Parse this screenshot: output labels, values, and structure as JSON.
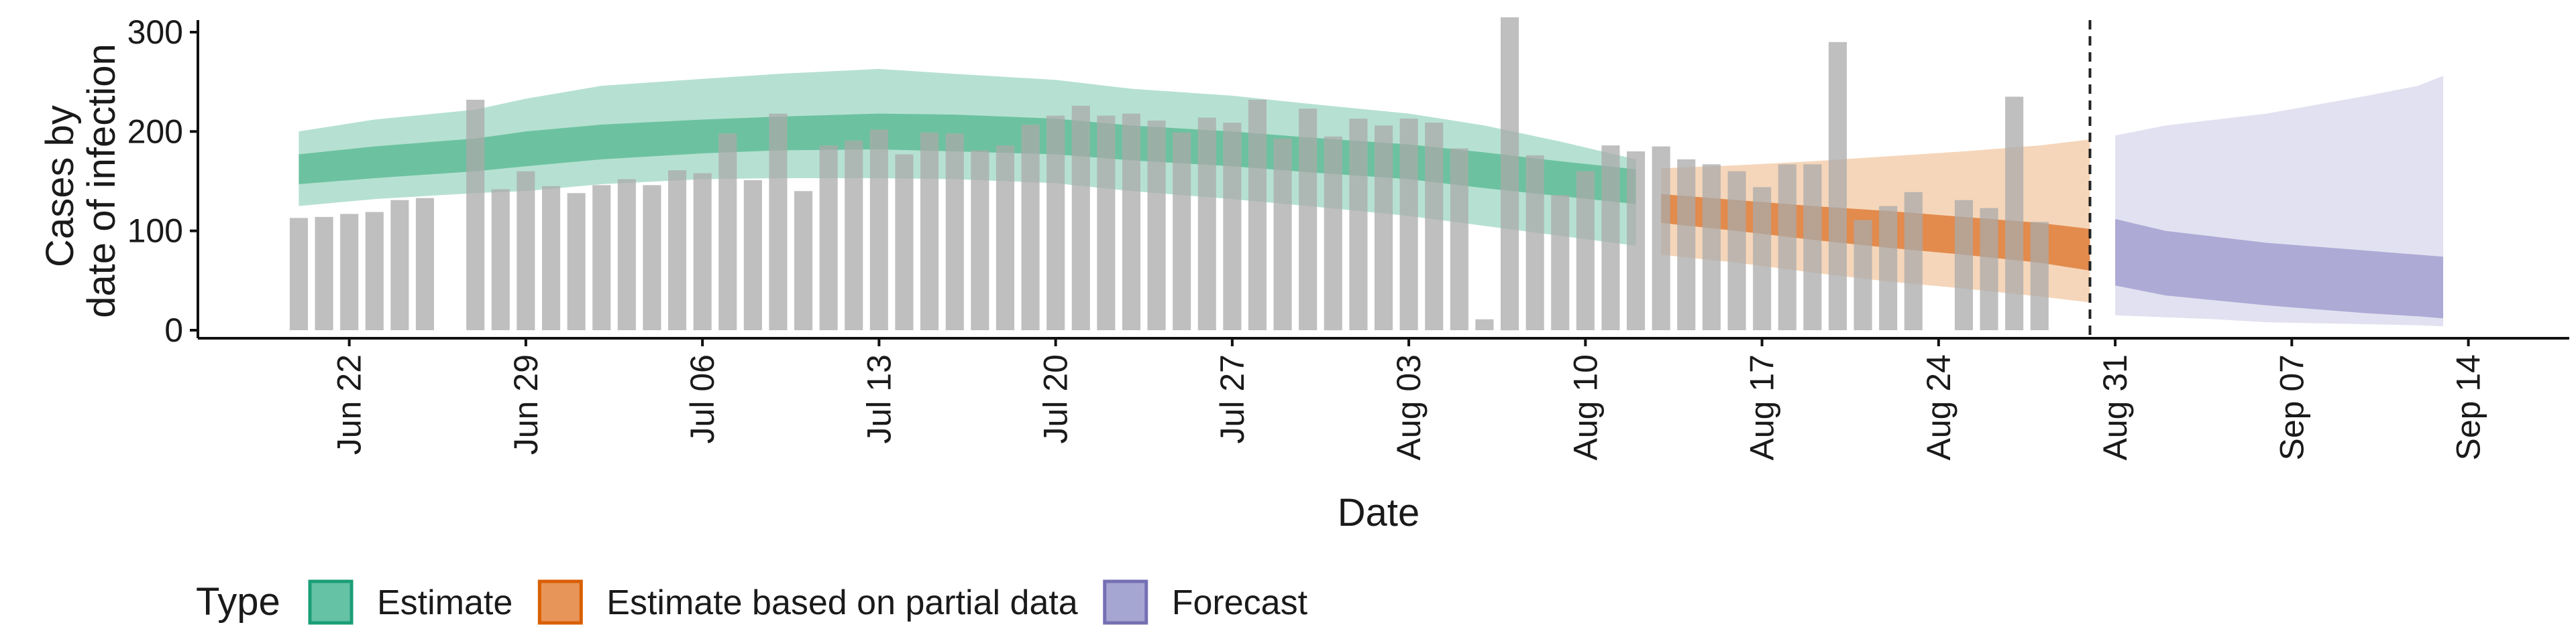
{
  "chart_data": {
    "type": "bar",
    "xlabel": "Date",
    "ylabel_lines": [
      "Cases by",
      "date of infection"
    ],
    "ylim": [
      0,
      330
    ],
    "yticks": [
      0,
      100,
      200,
      300
    ],
    "xlim": [
      "2020-06-16",
      "2020-09-18"
    ],
    "xticks": [
      {
        "date": "2020-06-22",
        "label": "Jun 22"
      },
      {
        "date": "2020-06-29",
        "label": "Jun 29"
      },
      {
        "date": "2020-07-06",
        "label": "Jul 06"
      },
      {
        "date": "2020-07-13",
        "label": "Jul 13"
      },
      {
        "date": "2020-07-20",
        "label": "Jul 20"
      },
      {
        "date": "2020-07-27",
        "label": "Jul 27"
      },
      {
        "date": "2020-08-03",
        "label": "Aug 03"
      },
      {
        "date": "2020-08-10",
        "label": "Aug 10"
      },
      {
        "date": "2020-08-17",
        "label": "Aug 17"
      },
      {
        "date": "2020-08-24",
        "label": "Aug 24"
      },
      {
        "date": "2020-08-31",
        "label": "Aug 31"
      },
      {
        "date": "2020-09-07",
        "label": "Sep 07"
      },
      {
        "date": "2020-09-14",
        "label": "Sep 14"
      }
    ],
    "vline_date": "2020-08-30",
    "observed_cases": {
      "start": "2020-06-20",
      "values": [
        113,
        114,
        117,
        119,
        131,
        133,
        null,
        232,
        142,
        160,
        145,
        138,
        146,
        152,
        146,
        161,
        158,
        198,
        151,
        218,
        140,
        186,
        191,
        202,
        177,
        199,
        198,
        181,
        186,
        207,
        216,
        226,
        216,
        218,
        211,
        199,
        214,
        209,
        232,
        193,
        223,
        195,
        213,
        206,
        213,
        209,
        183,
        11,
        315,
        176,
        136,
        160,
        186,
        180,
        185,
        172,
        167,
        160,
        144,
        167,
        167,
        290,
        111,
        125,
        139,
        null,
        131,
        123,
        235,
        109
      ]
    },
    "legend": {
      "title": "Type",
      "items": [
        {
          "label": "Estimate",
          "fill": "#66c2a5",
          "stroke": "#1b9e77"
        },
        {
          "label": "Estimate based on partial data",
          "fill": "#e8955a",
          "stroke": "#d95f02"
        },
        {
          "label": "Forecast",
          "fill": "#a6a6d2",
          "stroke": "#7570b3"
        }
      ]
    },
    "series": [
      {
        "type": "Estimate",
        "colors": {
          "outer": "#a9dcca",
          "inner": "#5fbc98"
        },
        "x": [
          "2020-06-20",
          "2020-06-23",
          "2020-06-27",
          "2020-06-29",
          "2020-07-02",
          "2020-07-06",
          "2020-07-09",
          "2020-07-13",
          "2020-07-16",
          "2020-07-20",
          "2020-07-23",
          "2020-07-27",
          "2020-07-30",
          "2020-08-03",
          "2020-08-06",
          "2020-08-09",
          "2020-08-12"
        ],
        "outer_low": [
          125,
          132,
          138,
          140,
          147,
          152,
          153,
          153,
          152,
          148,
          140,
          132,
          125,
          115,
          105,
          95,
          85
        ],
        "outer_high": [
          200,
          212,
          222,
          233,
          246,
          253,
          258,
          263,
          258,
          252,
          243,
          236,
          228,
          218,
          206,
          190,
          172
        ],
        "inner_low": [
          147,
          153,
          160,
          165,
          172,
          178,
          181,
          182,
          180,
          177,
          171,
          165,
          159,
          152,
          143,
          135,
          127
        ],
        "inner_high": [
          177,
          185,
          193,
          200,
          207,
          212,
          215,
          218,
          217,
          213,
          206,
          200,
          194,
          187,
          179,
          170,
          162
        ]
      },
      {
        "type": "Estimate based on partial data",
        "colors": {
          "outer": "#f3cfae",
          "inner": "#de7e3a"
        },
        "x": [
          "2020-08-13",
          "2020-08-16",
          "2020-08-19",
          "2020-08-22",
          "2020-08-25",
          "2020-08-28",
          "2020-08-30"
        ],
        "outer_low": [
          76,
          68,
          58,
          49,
          42,
          34,
          28
        ],
        "outer_high": [
          163,
          166,
          170,
          175,
          180,
          186,
          192
        ],
        "inner_low": [
          108,
          100,
          91,
          83,
          76,
          68,
          60
        ],
        "inner_high": [
          137,
          131,
          125,
          120,
          114,
          108,
          102
        ]
      },
      {
        "type": "Forecast",
        "colors": {
          "outer": "#dddcef",
          "inner": "#a3a0d0"
        },
        "x": [
          "2020-08-31",
          "2020-09-02",
          "2020-09-04",
          "2020-09-06",
          "2020-09-08",
          "2020-09-10",
          "2020-09-12",
          "2020-09-13"
        ],
        "outer_low": [
          15,
          13,
          11,
          8,
          7,
          6,
          5,
          4
        ],
        "outer_high": [
          196,
          206,
          212,
          218,
          227,
          236,
          246,
          256
        ],
        "inner_low": [
          45,
          35,
          30,
          25,
          21,
          17,
          14,
          12
        ],
        "inner_high": [
          112,
          100,
          94,
          88,
          84,
          80,
          76,
          74
        ]
      }
    ]
  }
}
